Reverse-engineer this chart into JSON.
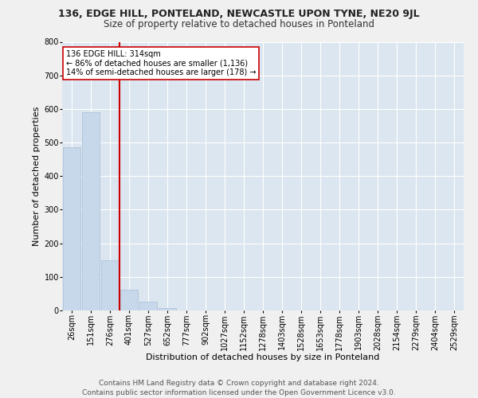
{
  "title": "136, EDGE HILL, PONTELAND, NEWCASTLE UPON TYNE, NE20 9JL",
  "subtitle": "Size of property relative to detached houses in Ponteland",
  "xlabel": "Distribution of detached houses by size in Ponteland",
  "ylabel": "Number of detached properties",
  "bar_color": "#c8d8eb",
  "bar_edgecolor": "#a8bdd4",
  "background_color": "#dce6f0",
  "fig_background": "#f0f0f0",
  "grid_color": "#ffffff",
  "vline_color": "#cc0000",
  "annotation_text": "136 EDGE HILL: 314sqm\n← 86% of detached houses are smaller (1,136)\n14% of semi-detached houses are larger (178) →",
  "annotation_box_color": "#ffffff",
  "annotation_box_edgecolor": "#cc0000",
  "categories": [
    "26sqm",
    "151sqm",
    "276sqm",
    "401sqm",
    "527sqm",
    "652sqm",
    "777sqm",
    "902sqm",
    "1027sqm",
    "1152sqm",
    "1278sqm",
    "1403sqm",
    "1528sqm",
    "1653sqm",
    "1778sqm",
    "1903sqm",
    "2028sqm",
    "2154sqm",
    "2279sqm",
    "2404sqm",
    "2529sqm"
  ],
  "values": [
    485,
    590,
    150,
    62,
    25,
    8,
    0,
    0,
    0,
    0,
    0,
    0,
    0,
    0,
    0,
    0,
    0,
    0,
    0,
    0,
    0
  ],
  "ylim": [
    0,
    800
  ],
  "yticks": [
    0,
    100,
    200,
    300,
    400,
    500,
    600,
    700,
    800
  ],
  "vline_pos": 2.5,
  "footer_text": "Contains HM Land Registry data © Crown copyright and database right 2024.\nContains public sector information licensed under the Open Government Licence v3.0.",
  "title_fontsize": 9,
  "subtitle_fontsize": 8.5,
  "xlabel_fontsize": 8,
  "ylabel_fontsize": 8,
  "tick_fontsize": 7,
  "annotation_fontsize": 7,
  "footer_fontsize": 6.5
}
